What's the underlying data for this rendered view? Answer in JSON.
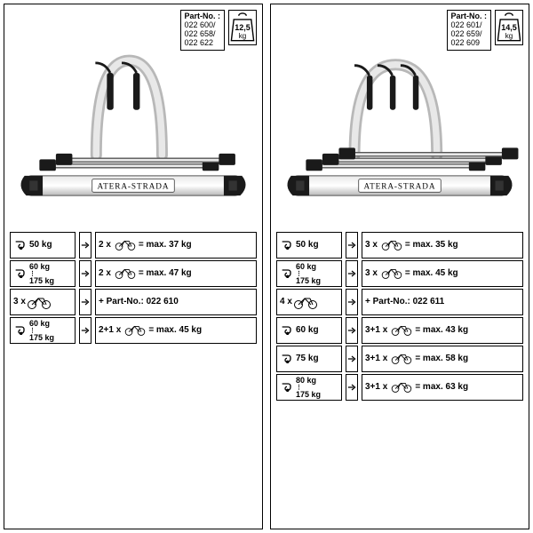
{
  "brand_label": "ATERA-STRADA",
  "panels": [
    {
      "arms": 2,
      "part_label": "Part-No. :",
      "part_numbers": "022 600/\n022 658/\n022 622",
      "weight_value": "12,5",
      "weight_unit": "kg",
      "rows": [
        {
          "left_type": "hook1",
          "left_val": "50 kg",
          "right_mult": "2 x",
          "right_bike": true,
          "right_rest": "=  max. 37 kg"
        },
        {
          "left_type": "hook2",
          "left_val_a": "60 kg",
          "left_val_b": "175 kg",
          "right_mult": "2 x",
          "right_bike": true,
          "right_rest": "=  max. 47 kg"
        },
        {
          "left_type": "bike",
          "left_val": "3 x",
          "right_mult": "",
          "right_bike": false,
          "right_rest": "+  Part-No.:  022 610"
        },
        {
          "left_type": "hook2",
          "left_val_a": "60 kg",
          "left_val_b": "175 kg",
          "right_mult": "2+1 x",
          "right_bike": true,
          "right_rest": "= max. 45 kg"
        }
      ]
    },
    {
      "arms": 3,
      "part_label": "Part-No. :",
      "part_numbers": "022 601/\n022 659/\n022 609",
      "weight_value": "14,5",
      "weight_unit": "kg",
      "rows": [
        {
          "left_type": "hook1",
          "left_val": "50 kg",
          "right_mult": "3 x",
          "right_bike": true,
          "right_rest": "=  max. 35 kg"
        },
        {
          "left_type": "hook2",
          "left_val_a": "60 kg",
          "left_val_b": "175 kg",
          "right_mult": "3 x",
          "right_bike": true,
          "right_rest": "=  max. 45 kg"
        },
        {
          "left_type": "bike",
          "left_val": "4 x",
          "right_mult": "",
          "right_bike": false,
          "right_rest": "+  Part-No.:  022 611"
        },
        {
          "left_type": "hook1",
          "left_val": "60 kg",
          "right_mult": "3+1 x",
          "right_bike": true,
          "right_rest": "= max. 43 kg"
        },
        {
          "left_type": "hook1",
          "left_val": "75 kg",
          "right_mult": "3+1 x",
          "right_bike": true,
          "right_rest": "= max. 58 kg"
        },
        {
          "left_type": "hook2",
          "left_val_a": "80 kg",
          "left_val_b": "175 kg",
          "right_mult": "3+1 x",
          "right_bike": true,
          "right_rest": "= max. 63 kg"
        }
      ]
    }
  ],
  "colors": {
    "stroke": "#000000",
    "metal_light": "#e8e8e8",
    "metal_mid": "#b8b8b8",
    "metal_dark": "#555555",
    "black": "#1a1a1a"
  }
}
